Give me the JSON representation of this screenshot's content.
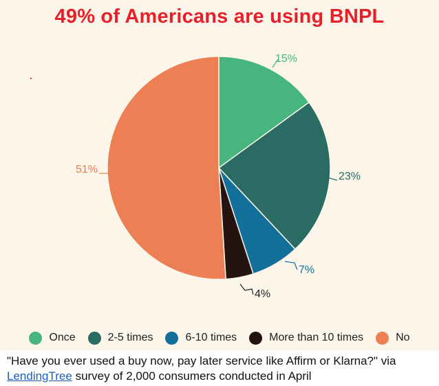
{
  "chart_data": {
    "type": "pie",
    "title": "49% of Americans are using BNPL",
    "slices": [
      {
        "name": "Once",
        "value": 15,
        "label": "15%",
        "color": "#46b67e"
      },
      {
        "name": "2-5 times",
        "value": 23,
        "label": "23%",
        "color": "#2a6b63"
      },
      {
        "name": "6-10 times",
        "value": 7,
        "label": "7%",
        "color": "#12709a"
      },
      {
        "name": "More than 10 times",
        "value": 4,
        "label": "4%",
        "color": "#24130f"
      },
      {
        "name": "No",
        "value": 51,
        "label": "51%",
        "color": "#ec7f53"
      }
    ],
    "start_angle_deg": 0,
    "direction": "clockwise",
    "legend_placement": "bottom",
    "label_colors": [
      "#46b67e",
      "#2a6b63",
      "#12709a",
      "#222222",
      "#ec7f53"
    ]
  },
  "caption": {
    "question": "\"Have you ever used a buy now, pay later service like Affirm or Klarna?\" via",
    "source_link": "LendingTree",
    "rest": "survey of 2,000 consumers conducted in April"
  },
  "colors": {
    "title": "#e8202a",
    "panel_background": "#fcf5ea",
    "link": "#1a5fb4"
  }
}
